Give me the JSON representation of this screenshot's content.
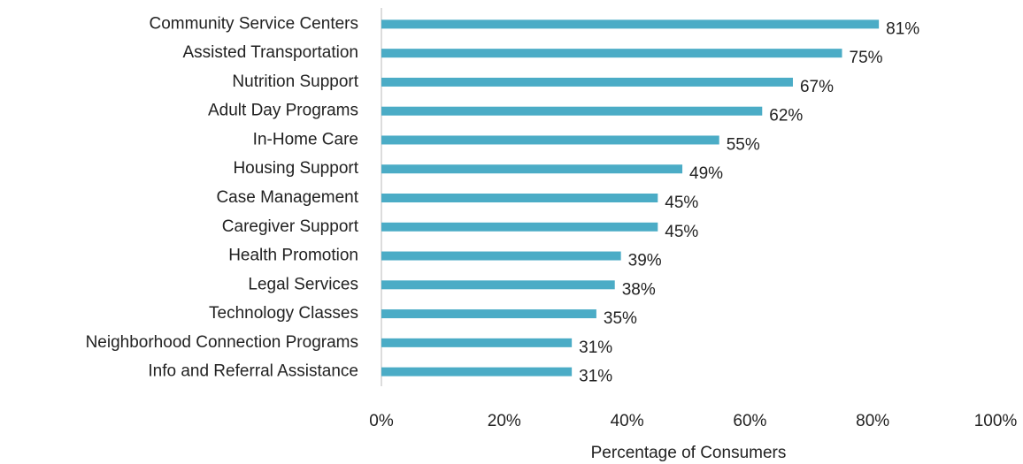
{
  "chart_data": {
    "type": "bar",
    "orientation": "horizontal",
    "x_label": "Percentage of Consumers",
    "categories": [
      "Community Service Centers",
      "Assisted Transportation",
      "Nutrition Support",
      "Adult Day Programs",
      "In-Home Care",
      "Housing Support",
      "Case Management",
      "Caregiver Support",
      "Health Promotion",
      "Legal Services",
      "Technology Classes",
      "Neighborhood Connection Programs",
      "Info and Referral Assistance"
    ],
    "values": [
      81,
      75,
      67,
      62,
      55,
      49,
      45,
      45,
      39,
      38,
      35,
      31,
      31
    ],
    "value_labels": [
      "81%",
      "75%",
      "67%",
      "62%",
      "55%",
      "49%",
      "45%",
      "45%",
      "39%",
      "38%",
      "35%",
      "31%",
      "31%"
    ],
    "color": "#4bacc6",
    "xlim": [
      0,
      100
    ],
    "xticks": [
      {
        "value": 0,
        "label": "0%"
      },
      {
        "value": 20,
        "label": "20%"
      },
      {
        "value": 40,
        "label": "40%"
      },
      {
        "value": 60,
        "label": "60%"
      },
      {
        "value": 80,
        "label": "80%"
      },
      {
        "value": 100,
        "label": "100%"
      }
    ],
    "grid": false
  }
}
